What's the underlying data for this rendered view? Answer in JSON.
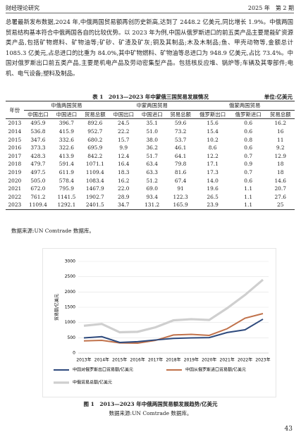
{
  "header": {
    "left": "财经理论研究",
    "right": "2025 年　第 2 期"
  },
  "body": "总署最新发布数据,2024 年,中俄两国贸易额再创历史新高,达到了 2448.2 亿美元,同比增长 1.9%。中俄两国贸易结构基本符合中俄两国各自的比较优势。以 2023 年为例,中国从俄罗斯进口的前五类产品主要是能矿资源类产品,包括矿物燃料、矿物油等;矿砂、矿渣及矿灰;铜及其制品;木及木制品;鱼、甲壳动物等,金额总计 1085.3 亿美元,占总进口的比重为 84.0%,其中矿物燃料、矿物油等总进口为 948.9 亿美元,占比 73.4%。中国对俄罗斯出口前五类产品,主要是机电产品及劳动密集型产品。包括核反应堆、锅炉等;车辆及其零部件;电机、电气设备;塑料及制品。",
  "table": {
    "title": "表 1　2013—2023 年中蒙俄三国贸易发展情况",
    "unit": "单位:亿美元",
    "year_header": "年份",
    "groups": [
      "中俄两国贸易",
      "中蒙两国贸易",
      "俄蒙两国贸易"
    ],
    "subheaders": [
      "中国出口",
      "中国进口",
      "贸易总额",
      "中国出口",
      "中国进口",
      "贸易总额",
      "俄罗斯出口",
      "俄罗斯进口",
      "贸易总额"
    ],
    "rows": [
      [
        "2013",
        "495.9",
        "396.7",
        "892.6",
        "24.5",
        "35.1",
        "59.6",
        "15.6",
        "0.6",
        "16.2"
      ],
      [
        "2014",
        "536.8",
        "415.9",
        "952.7",
        "22.2",
        "51.0",
        "73.2",
        "15.4",
        "0.6",
        "16"
      ],
      [
        "2015",
        "347.6",
        "332.6",
        "680.2",
        "15.7",
        "38.0",
        "53.7",
        "10.2",
        "0.8",
        "11"
      ],
      [
        "2016",
        "373.3",
        "322.6",
        "695.9",
        "9.9",
        "36.2",
        "46.1",
        "8.6",
        "0.6",
        "9.2"
      ],
      [
        "2017",
        "428.3",
        "413.9",
        "842.2",
        "12.4",
        "51.7",
        "64.1",
        "12.2",
        "0.7",
        "12.9"
      ],
      [
        "2018",
        "479.7",
        "591.4",
        "1071.1",
        "16.4",
        "63.4",
        "79.8",
        "17.1",
        "0.9",
        "18"
      ],
      [
        "2019",
        "497.5",
        "611.9",
        "1109.4",
        "18.3",
        "63.3",
        "81.6",
        "17.3",
        "0.7",
        "18"
      ],
      [
        "2020",
        "505.0",
        "578.4",
        "1083.4",
        "16.2",
        "51.2",
        "67.4",
        "14.0",
        "0.6",
        "14.6"
      ],
      [
        "2021",
        "672.0",
        "795.9",
        "1467.9",
        "22.0",
        "69.0",
        "91",
        "19.6",
        "1.1",
        "20.7"
      ],
      [
        "2022",
        "761.2",
        "1141.5",
        "1902.7",
        "28.9",
        "93.4",
        "122.3",
        "26.5",
        "1.1",
        "27.6"
      ],
      [
        "2023",
        "1109.4",
        "1292.1",
        "2401.5",
        "34.7",
        "131.2",
        "165.9",
        "23.9",
        "1.1",
        "25"
      ]
    ],
    "source": "数据来源:UN Comtrade 数据库。"
  },
  "chart_data": {
    "type": "line",
    "y_label": "贸易额/亿美元",
    "categories": [
      "2013年",
      "2014年",
      "2015年",
      "2016年",
      "2017年",
      "2018年",
      "2019年",
      "2020年",
      "2021年",
      "2022年",
      "2023年"
    ],
    "series": [
      {
        "name": "中俄贸易总额/亿美元",
        "color": "#cfcfcf",
        "values": [
          892.6,
          952.7,
          680.2,
          695.9,
          842.2,
          1071.1,
          1109.4,
          1083.4,
          1467.9,
          1902.7,
          2401.5
        ]
      },
      {
        "name": "中国从俄罗斯进口贸易额/亿美元",
        "color": "#c0714a",
        "values": [
          396.7,
          415.9,
          332.6,
          322.6,
          413.9,
          591.4,
          611.9,
          578.4,
          795.9,
          1141.5,
          1292.1
        ]
      },
      {
        "name": "中国对俄罗斯出口贸易额/亿美元",
        "color": "#2e4a7d",
        "values": [
          495.9,
          536.8,
          347.6,
          373.3,
          428.3,
          479.7,
          497.5,
          505.0,
          672.0,
          761.2,
          1109.4
        ]
      }
    ],
    "ylim": [
      0,
      3000
    ],
    "yticks": [
      0,
      500,
      1000,
      1500,
      2000,
      2500,
      3000
    ],
    "grid": true
  },
  "figure": {
    "caption": "图 1　2013—2023 年中俄两国贸易额发展趋势/亿美元",
    "source": "数据来源:UN Comtrade 数据库。"
  },
  "page_number": "43"
}
